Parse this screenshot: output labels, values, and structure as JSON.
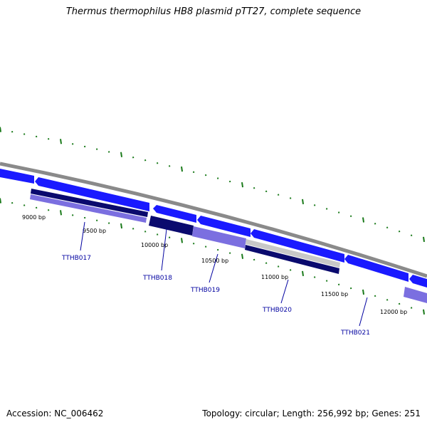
{
  "title": "Thermus thermophilus HB8 plasmid pTT27, complete sequence",
  "footer": {
    "accession": "Accession: NC_006462",
    "summary": "Topology: circular; Length: 256,992 bp; Genes: 251"
  },
  "colors": {
    "backbone": "#8a8a8a",
    "forward_gene": "#1a1aff",
    "forward_gene_dark": "#0000a8",
    "feature_dark": "#0a0a6e",
    "feature_light": "#7b6fe0",
    "feature_grey": "#c8c8c8",
    "tick": "#1a7a1a",
    "gene_label": "#0000a0"
  },
  "position_labels": [
    "9000 bp",
    "9500 bp",
    "10000 bp",
    "10500 bp",
    "11000 bp",
    "11500 bp",
    "12000 bp"
  ],
  "genes": [
    {
      "label": "TTHB017"
    },
    {
      "label": "TTHB018"
    },
    {
      "label": "TTHB019"
    },
    {
      "label": "TTHB020"
    },
    {
      "label": "TTHB021"
    }
  ]
}
